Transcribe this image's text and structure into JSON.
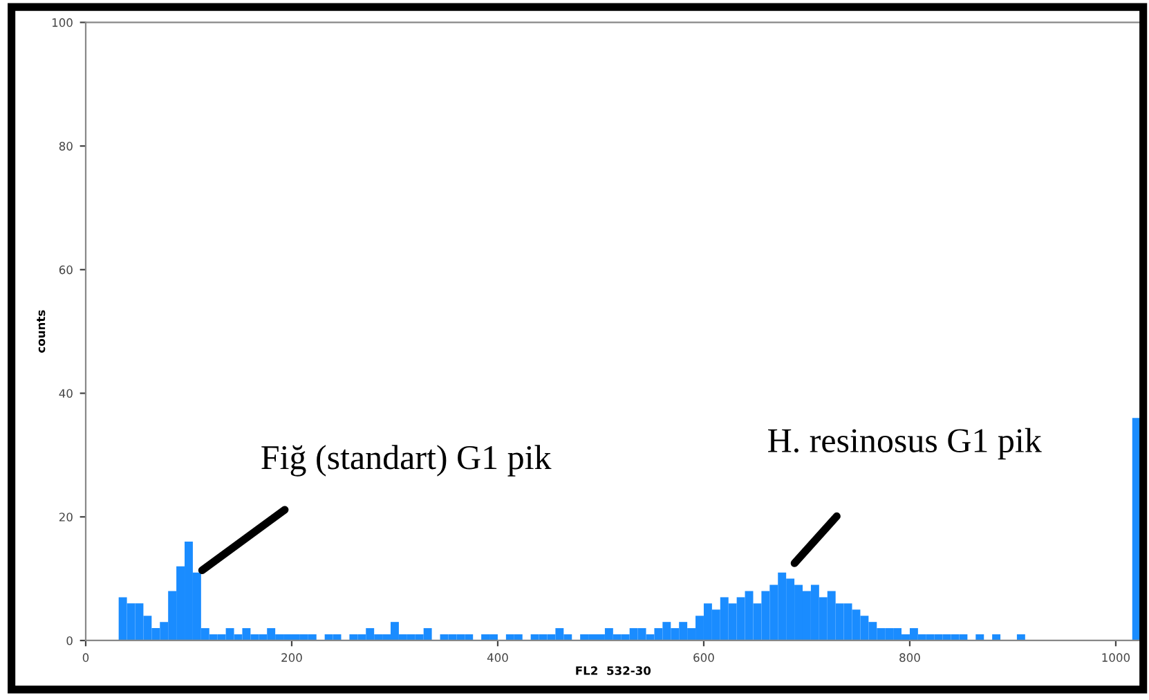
{
  "chart_data": {
    "type": "histogram",
    "xlabel": "FL2  532-30",
    "ylabel": "counts",
    "color": "#1a8cff",
    "bins": [
      32,
      40,
      48,
      56,
      64,
      72,
      80,
      88,
      96,
      104,
      112,
      120,
      128,
      136,
      144,
      152,
      160,
      168,
      176,
      184,
      192,
      200,
      208,
      216,
      224,
      232,
      240,
      248,
      256,
      264,
      272,
      280,
      288,
      296,
      304,
      312,
      320,
      328,
      336,
      344,
      352,
      360,
      368,
      376,
      384,
      392,
      400,
      408,
      416,
      424,
      432,
      440,
      448,
      456,
      464,
      472,
      480,
      488,
      496,
      504,
      512,
      520,
      528,
      536,
      544,
      552,
      560,
      568,
      576,
      584,
      592,
      600,
      608,
      616,
      624,
      632,
      640,
      648,
      656,
      664,
      672,
      680,
      688,
      696,
      704,
      712,
      720,
      728,
      736,
      744,
      752,
      760,
      768,
      776,
      784,
      792,
      800,
      808,
      816,
      824,
      832,
      840,
      848,
      856,
      864,
      872,
      880,
      888,
      896,
      904,
      912,
      920,
      928,
      936,
      944,
      952,
      960,
      968,
      976,
      984,
      992,
      1000,
      1008,
      1016,
      1024
    ],
    "values": [
      7,
      6,
      6,
      4,
      2,
      3,
      8,
      12,
      16,
      11,
      2,
      1,
      1,
      2,
      1,
      2,
      1,
      1,
      2,
      1,
      1,
      1,
      1,
      1,
      0,
      1,
      1,
      0,
      1,
      1,
      2,
      1,
      1,
      3,
      1,
      1,
      1,
      2,
      0,
      1,
      1,
      1,
      1,
      0,
      1,
      1,
      0,
      1,
      1,
      0,
      1,
      1,
      1,
      2,
      1,
      0,
      1,
      1,
      1,
      2,
      1,
      1,
      2,
      2,
      1,
      2,
      3,
      2,
      3,
      2,
      4,
      6,
      5,
      7,
      6,
      7,
      8,
      6,
      8,
      9,
      11,
      10,
      9,
      8,
      9,
      7,
      8,
      6,
      6,
      5,
      4,
      3,
      2,
      2,
      2,
      1,
      2,
      1,
      1,
      1,
      1,
      1,
      1,
      0,
      1,
      0,
      1,
      0,
      0,
      1,
      0,
      0,
      0,
      0,
      0,
      0,
      0,
      0,
      0,
      0,
      0,
      0,
      0,
      36
    ],
    "xlim": [
      0,
      1024
    ],
    "ylim": [
      0,
      100
    ],
    "xticks": [
      0,
      200,
      400,
      600,
      800,
      1000
    ],
    "yticks": [
      0,
      20,
      40,
      60,
      80,
      100
    ],
    "annotations": [
      {
        "text": "Fiğ (standart) G1 pik",
        "x": 110,
        "y": 11
      },
      "H. resinosus G1 pik"
    ],
    "grid": false
  }
}
